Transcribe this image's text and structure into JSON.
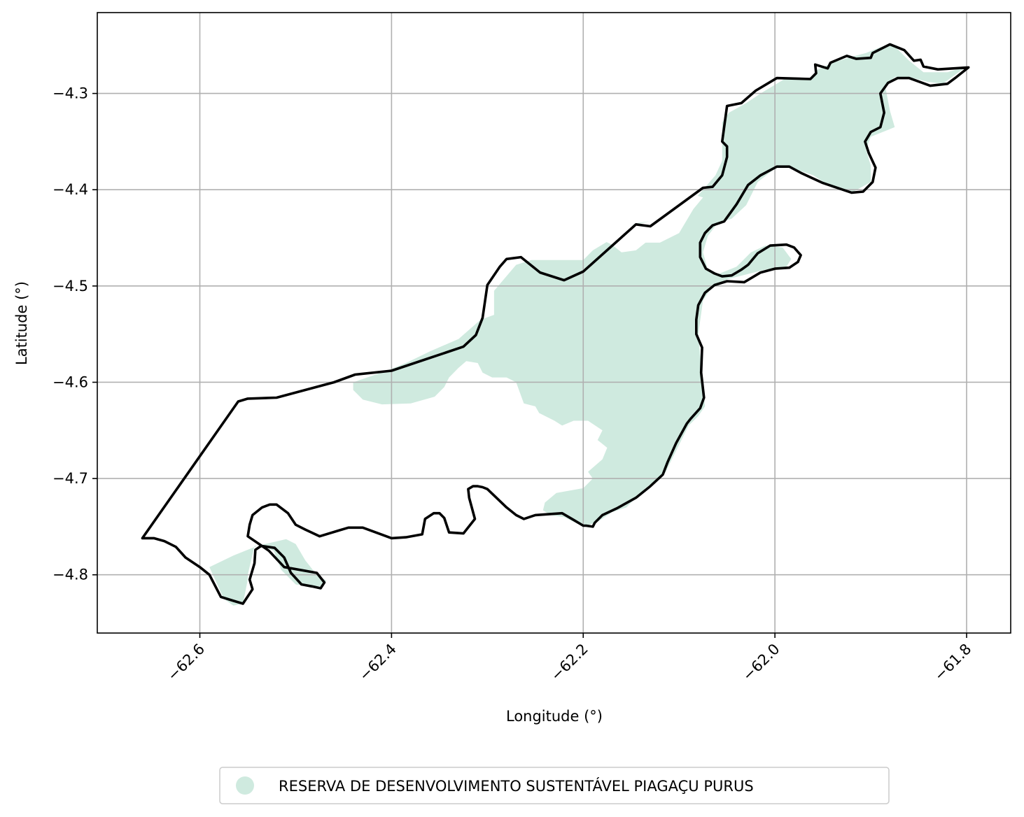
{
  "chart_data": {
    "type": "map",
    "xlabel": "Longitude (°)",
    "ylabel": "Latitude (°)",
    "xlim": [
      -62.707,
      -61.754
    ],
    "ylim": [
      -4.8605,
      -4.216
    ],
    "x_ticks": [
      {
        "value": -62.6,
        "label": "−62.6"
      },
      {
        "value": -62.4,
        "label": "−62.4"
      },
      {
        "value": -62.2,
        "label": "−62.2"
      },
      {
        "value": -62.0,
        "label": "−62.0"
      },
      {
        "value": -61.8,
        "label": "−61.8"
      }
    ],
    "y_ticks": [
      {
        "value": -4.3,
        "label": "−4.3"
      },
      {
        "value": -4.4,
        "label": "−4.4"
      },
      {
        "value": -4.5,
        "label": "−4.5"
      },
      {
        "value": -4.6,
        "label": "−4.6"
      },
      {
        "value": -4.7,
        "label": "−4.7"
      },
      {
        "value": -4.8,
        "label": "−4.8"
      }
    ],
    "grid": true,
    "colors": {
      "reserve_fill": "#cfeadf",
      "outline": "#000000",
      "grid": "#b0b0b0"
    },
    "legend": {
      "placement": "bottom-center",
      "entries": [
        {
          "label": "RESERVA DE DESENVOLVIMENTO SUSTENTÁVEL PIAGAÇU PURUS",
          "color": "#cfeadf"
        }
      ]
    },
    "reserve_areas": [
      [
        [
          -62.293,
          -4.53
        ],
        [
          -62.293,
          -4.505
        ],
        [
          -62.27,
          -4.478
        ],
        [
          -62.254,
          -4.473
        ],
        [
          -62.2,
          -4.473
        ],
        [
          -62.19,
          -4.463
        ],
        [
          -62.165,
          -4.448
        ],
        [
          -62.146,
          -4.435
        ],
        [
          -62.1,
          -4.428
        ],
        [
          -62.075,
          -4.4
        ],
        [
          -62.062,
          -4.385
        ],
        [
          -62.055,
          -4.37
        ],
        [
          -62.055,
          -4.33
        ],
        [
          -62.048,
          -4.32
        ],
        [
          -62.03,
          -4.31
        ],
        [
          -62.015,
          -4.3
        ],
        [
          -61.99,
          -4.285
        ],
        [
          -61.965,
          -4.285
        ],
        [
          -61.955,
          -4.275
        ],
        [
          -61.94,
          -4.268
        ],
        [
          -61.92,
          -4.262
        ],
        [
          -61.905,
          -4.258
        ],
        [
          -61.89,
          -4.252
        ],
        [
          -61.878,
          -4.248
        ],
        [
          -61.86,
          -4.266
        ],
        [
          -61.845,
          -4.278
        ],
        [
          -61.82,
          -4.278
        ],
        [
          -61.8,
          -4.272
        ],
        [
          -61.825,
          -4.29
        ],
        [
          -61.84,
          -4.288
        ],
        [
          -61.86,
          -4.283
        ],
        [
          -61.875,
          -4.283
        ],
        [
          -61.885,
          -4.292
        ],
        [
          -61.88,
          -4.318
        ],
        [
          -61.875,
          -4.335
        ],
        [
          -61.9,
          -4.345
        ],
        [
          -61.905,
          -4.358
        ],
        [
          -61.9,
          -4.375
        ],
        [
          -61.9,
          -4.392
        ],
        [
          -61.92,
          -4.403
        ],
        [
          -61.94,
          -4.398
        ],
        [
          -61.96,
          -4.385
        ],
        [
          -61.99,
          -4.375
        ],
        [
          -62.0,
          -4.378
        ],
        [
          -62.018,
          -4.392
        ],
        [
          -62.03,
          -4.416
        ],
        [
          -62.045,
          -4.43
        ],
        [
          -62.06,
          -4.435
        ],
        [
          -62.07,
          -4.448
        ],
        [
          -62.075,
          -4.465
        ],
        [
          -62.07,
          -4.483
        ],
        [
          -62.06,
          -4.488
        ],
        [
          -62.04,
          -4.48
        ],
        [
          -62.025,
          -4.465
        ],
        [
          -62.01,
          -4.458
        ],
        [
          -61.992,
          -4.46
        ],
        [
          -61.983,
          -4.472
        ],
        [
          -61.988,
          -4.48
        ],
        [
          -62.01,
          -4.483
        ],
        [
          -62.05,
          -4.493
        ],
        [
          -62.065,
          -4.5
        ],
        [
          -62.075,
          -4.515
        ],
        [
          -62.08,
          -4.55
        ],
        [
          -62.073,
          -4.625
        ],
        [
          -62.08,
          -4.635
        ],
        [
          -62.09,
          -4.645
        ],
        [
          -62.1,
          -4.665
        ],
        [
          -62.115,
          -4.695
        ],
        [
          -62.135,
          -4.71
        ],
        [
          -62.155,
          -4.73
        ],
        [
          -62.17,
          -4.735
        ],
        [
          -62.185,
          -4.745
        ],
        [
          -62.2,
          -4.75
        ],
        [
          -62.22,
          -4.74
        ],
        [
          -62.234,
          -4.738
        ],
        [
          -62.242,
          -4.733
        ],
        [
          -62.24,
          -4.725
        ],
        [
          -62.228,
          -4.715
        ],
        [
          -62.2,
          -4.71
        ],
        [
          -62.19,
          -4.7
        ],
        [
          -62.195,
          -4.693
        ],
        [
          -62.18,
          -4.68
        ],
        [
          -62.175,
          -4.668
        ],
        [
          -62.185,
          -4.66
        ],
        [
          -62.175,
          -4.64
        ],
        [
          -62.17,
          -4.635
        ],
        [
          -62.18,
          -4.65
        ],
        [
          -62.195,
          -4.64
        ],
        [
          -62.21,
          -4.64
        ],
        [
          -62.222,
          -4.645
        ],
        [
          -62.23,
          -4.64
        ],
        [
          -62.246,
          -4.632
        ],
        [
          -62.25,
          -4.625
        ],
        [
          -62.262,
          -4.622
        ],
        [
          -62.27,
          -4.6
        ],
        [
          -62.28,
          -4.595
        ],
        [
          -62.295,
          -4.595
        ],
        [
          -62.305,
          -4.59
        ],
        [
          -62.31,
          -4.58
        ],
        [
          -62.322,
          -4.578
        ],
        [
          -62.33,
          -4.585
        ],
        [
          -62.34,
          -4.595
        ],
        [
          -62.345,
          -4.605
        ],
        [
          -62.355,
          -4.615
        ],
        [
          -62.38,
          -4.622
        ],
        [
          -62.41,
          -4.623
        ],
        [
          -62.43,
          -4.618
        ],
        [
          -62.44,
          -4.608
        ],
        [
          -62.44,
          -4.6
        ],
        [
          -62.405,
          -4.588
        ],
        [
          -62.385,
          -4.58
        ],
        [
          -62.36,
          -4.568
        ],
        [
          -62.33,
          -4.555
        ],
        [
          -62.307,
          -4.535
        ],
        [
          -62.293,
          -4.53
        ]
      ],
      [
        [
          -62.59,
          -4.792
        ],
        [
          -62.565,
          -4.78
        ],
        [
          -62.54,
          -4.77
        ],
        [
          -62.51,
          -4.763
        ],
        [
          -62.5,
          -4.768
        ],
        [
          -62.49,
          -4.785
        ],
        [
          -62.478,
          -4.8
        ],
        [
          -62.468,
          -4.806
        ],
        [
          -62.472,
          -4.812
        ],
        [
          -62.486,
          -4.812
        ],
        [
          -62.5,
          -4.81
        ],
        [
          -62.515,
          -4.795
        ],
        [
          -62.523,
          -4.775
        ],
        [
          -62.535,
          -4.77
        ],
        [
          -62.543,
          -4.77
        ],
        [
          -62.55,
          -4.8
        ],
        [
          -62.55,
          -4.805
        ],
        [
          -62.555,
          -4.83
        ],
        [
          -62.565,
          -4.832
        ],
        [
          -62.575,
          -4.825
        ],
        [
          -62.59,
          -4.792
        ]
      ]
    ],
    "holes": [
      [
        [
          -62.185,
          -4.45
        ],
        [
          -62.17,
          -4.457
        ],
        [
          -62.16,
          -4.465
        ],
        [
          -62.145,
          -4.463
        ],
        [
          -62.135,
          -4.455
        ],
        [
          -62.12,
          -4.455
        ],
        [
          -62.1,
          -4.445
        ],
        [
          -62.085,
          -4.42
        ],
        [
          -62.075,
          -4.408
        ],
        [
          -62.085,
          -4.405
        ],
        [
          -62.1,
          -4.42
        ],
        [
          -62.12,
          -4.43
        ],
        [
          -62.14,
          -4.435
        ],
        [
          -62.16,
          -4.44
        ],
        [
          -62.185,
          -4.45
        ]
      ]
    ],
    "boundary": [
      [
        -62.66,
        -4.762
      ],
      [
        -62.56,
        -4.62
      ],
      [
        -62.55,
        -4.617
      ],
      [
        -62.52,
        -4.616
      ],
      [
        -62.46,
        -4.6
      ],
      [
        -62.438,
        -4.592
      ],
      [
        -62.4,
        -4.588
      ],
      [
        -62.325,
        -4.563
      ],
      [
        -62.312,
        -4.551
      ],
      [
        -62.305,
        -4.533
      ],
      [
        -62.3,
        -4.499
      ],
      [
        -62.287,
        -4.48
      ],
      [
        -62.28,
        -4.472
      ],
      [
        -62.265,
        -4.47
      ],
      [
        -62.245,
        -4.486
      ],
      [
        -62.22,
        -4.494
      ],
      [
        -62.2,
        -4.485
      ],
      [
        -62.145,
        -4.436
      ],
      [
        -62.13,
        -4.438
      ],
      [
        -62.075,
        -4.398
      ],
      [
        -62.065,
        -4.397
      ],
      [
        -62.055,
        -4.385
      ],
      [
        -62.05,
        -4.366
      ],
      [
        -62.05,
        -4.355
      ],
      [
        -62.055,
        -4.35
      ],
      [
        -62.05,
        -4.313
      ],
      [
        -62.035,
        -4.31
      ],
      [
        -62.02,
        -4.297
      ],
      [
        -61.998,
        -4.284
      ],
      [
        -61.963,
        -4.285
      ],
      [
        -61.957,
        -4.279
      ],
      [
        -61.958,
        -4.27
      ],
      [
        -61.945,
        -4.274
      ],
      [
        -61.942,
        -4.268
      ],
      [
        -61.925,
        -4.261
      ],
      [
        -61.915,
        -4.264
      ],
      [
        -61.9,
        -4.263
      ],
      [
        -61.898,
        -4.258
      ],
      [
        -61.88,
        -4.249
      ],
      [
        -61.865,
        -4.255
      ],
      [
        -61.855,
        -4.266
      ],
      [
        -61.848,
        -4.265
      ],
      [
        -61.845,
        -4.272
      ],
      [
        -61.83,
        -4.275
      ],
      [
        -61.798,
        -4.273
      ],
      [
        -61.812,
        -4.284
      ],
      [
        -61.82,
        -4.29
      ],
      [
        -61.838,
        -4.292
      ],
      [
        -61.86,
        -4.284
      ],
      [
        -61.872,
        -4.284
      ],
      [
        -61.882,
        -4.289
      ],
      [
        -61.89,
        -4.3
      ],
      [
        -61.886,
        -4.32
      ],
      [
        -61.89,
        -4.335
      ],
      [
        -61.9,
        -4.34
      ],
      [
        -61.906,
        -4.35
      ],
      [
        -61.902,
        -4.362
      ],
      [
        -61.895,
        -4.377
      ],
      [
        -61.898,
        -4.392
      ],
      [
        -61.908,
        -4.402
      ],
      [
        -61.92,
        -4.403
      ],
      [
        -61.95,
        -4.393
      ],
      [
        -61.972,
        -4.383
      ],
      [
        -61.985,
        -4.376
      ],
      [
        -61.998,
        -4.376
      ],
      [
        -62.015,
        -4.385
      ],
      [
        -62.028,
        -4.395
      ],
      [
        -62.04,
        -4.415
      ],
      [
        -62.053,
        -4.433
      ],
      [
        -62.065,
        -4.437
      ],
      [
        -62.073,
        -4.445
      ],
      [
        -62.078,
        -4.455
      ],
      [
        -62.078,
        -4.47
      ],
      [
        -62.072,
        -4.482
      ],
      [
        -62.063,
        -4.487
      ],
      [
        -62.055,
        -4.49
      ],
      [
        -62.045,
        -4.489
      ],
      [
        -62.035,
        -4.483
      ],
      [
        -62.028,
        -4.478
      ],
      [
        -62.018,
        -4.466
      ],
      [
        -62.005,
        -4.458
      ],
      [
        -61.988,
        -4.457
      ],
      [
        -61.98,
        -4.46
      ],
      [
        -61.973,
        -4.468
      ],
      [
        -61.976,
        -4.475
      ],
      [
        -61.985,
        -4.481
      ],
      [
        -62.0,
        -4.482
      ],
      [
        -62.015,
        -4.486
      ],
      [
        -62.032,
        -4.496
      ],
      [
        -62.05,
        -4.495
      ],
      [
        -62.063,
        -4.499
      ],
      [
        -62.073,
        -4.507
      ],
      [
        -62.08,
        -4.52
      ],
      [
        -62.082,
        -4.535
      ],
      [
        -62.082,
        -4.55
      ],
      [
        -62.076,
        -4.564
      ],
      [
        -62.077,
        -4.59
      ],
      [
        -62.074,
        -4.616
      ],
      [
        -62.078,
        -4.627
      ],
      [
        -62.088,
        -4.638
      ],
      [
        -62.092,
        -4.643
      ],
      [
        -62.103,
        -4.663
      ],
      [
        -62.112,
        -4.683
      ],
      [
        -62.117,
        -4.696
      ],
      [
        -62.13,
        -4.708
      ],
      [
        -62.145,
        -4.72
      ],
      [
        -62.165,
        -4.731
      ],
      [
        -62.18,
        -4.738
      ],
      [
        -62.188,
        -4.746
      ],
      [
        -62.19,
        -4.75
      ],
      [
        -62.197,
        -4.749
      ],
      [
        -62.2,
        -4.749
      ],
      [
        -62.21,
        -4.743
      ],
      [
        -62.222,
        -4.736
      ],
      [
        -62.25,
        -4.738
      ],
      [
        -62.262,
        -4.742
      ],
      [
        -62.27,
        -4.738
      ],
      [
        -62.28,
        -4.73
      ],
      [
        -62.3,
        -4.711
      ],
      [
        -62.305,
        -4.709
      ],
      [
        -62.31,
        -4.708
      ],
      [
        -62.315,
        -4.708
      ],
      [
        -62.32,
        -4.711
      ],
      [
        -62.319,
        -4.72
      ],
      [
        -62.313,
        -4.742
      ],
      [
        -62.325,
        -4.757
      ],
      [
        -62.34,
        -4.756
      ],
      [
        -62.345,
        -4.741
      ],
      [
        -62.35,
        -4.736
      ],
      [
        -62.356,
        -4.736
      ],
      [
        -62.365,
        -4.742
      ],
      [
        -62.368,
        -4.758
      ],
      [
        -62.385,
        -4.761
      ],
      [
        -62.4,
        -4.762
      ],
      [
        -62.43,
        -4.751
      ],
      [
        -62.445,
        -4.751
      ],
      [
        -62.455,
        -4.754
      ],
      [
        -62.475,
        -4.76
      ],
      [
        -62.49,
        -4.753
      ],
      [
        -62.5,
        -4.748
      ],
      [
        -62.508,
        -4.736
      ],
      [
        -62.52,
        -4.727
      ],
      [
        -62.527,
        -4.727
      ],
      [
        -62.535,
        -4.73
      ],
      [
        -62.545,
        -4.738
      ],
      [
        -62.548,
        -4.748
      ],
      [
        -62.55,
        -4.76
      ],
      [
        -62.528,
        -4.775
      ],
      [
        -62.512,
        -4.792
      ],
      [
        -62.478,
        -4.798
      ],
      [
        -62.47,
        -4.808
      ],
      [
        -62.474,
        -4.814
      ],
      [
        -62.483,
        -4.812
      ],
      [
        -62.494,
        -4.81
      ],
      [
        -62.505,
        -4.798
      ],
      [
        -62.512,
        -4.782
      ],
      [
        -62.522,
        -4.772
      ],
      [
        -62.536,
        -4.77
      ],
      [
        -62.542,
        -4.774
      ],
      [
        -62.543,
        -4.788
      ],
      [
        -62.548,
        -4.805
      ],
      [
        -62.545,
        -4.815
      ],
      [
        -62.555,
        -4.83
      ],
      [
        -62.565,
        -4.827
      ],
      [
        -62.578,
        -4.823
      ],
      [
        -62.59,
        -4.8
      ],
      [
        -62.6,
        -4.792
      ],
      [
        -62.615,
        -4.782
      ],
      [
        -62.625,
        -4.771
      ],
      [
        -62.637,
        -4.765
      ],
      [
        -62.648,
        -4.762
      ],
      [
        -62.66,
        -4.762
      ]
    ]
  }
}
